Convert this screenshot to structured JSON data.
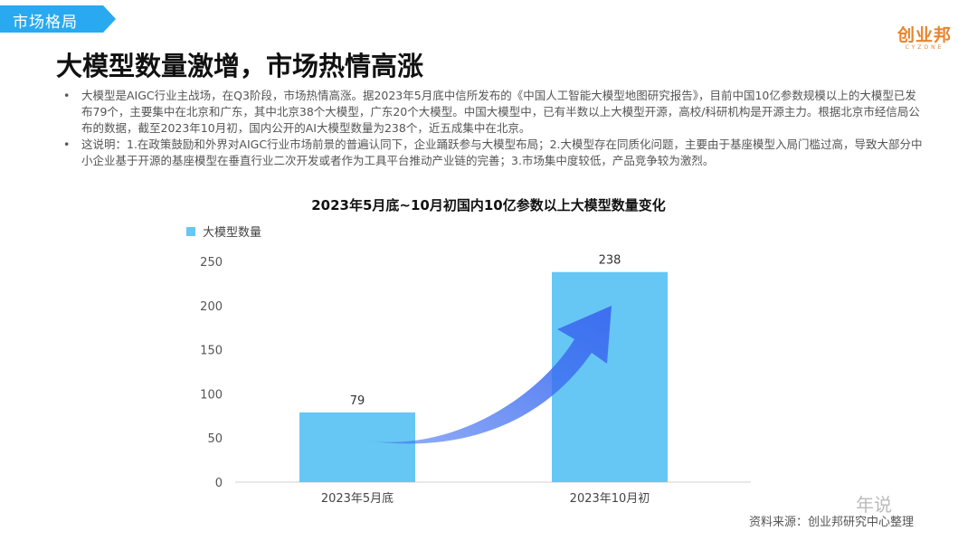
{
  "section_tag": "市场格局",
  "logo": {
    "main": "创业邦",
    "sub": "CYZONE"
  },
  "title": "大模型数量激增，市场热情高涨",
  "bullets": [
    "大模型是AIGC行业主战场，在Q3阶段，市场热情高涨。据2023年5月底中信所发布的《中国人工智能大模型地图研究报告》，目前中国10亿参数规模以上的大模型已发布79个，主要集中在北京和广东，其中北京38个大模型，广东20个大模型。中国大模型中，已有半数以上大模型开源，高校/科研机构是开源主力。根据北京市经信局公布的数据，截至2023年10月初，国内公开的AI大模型数量为238个，近五成集中在北京。",
    "这说明：1.在政策鼓励和外界对AIGC行业市场前景的普遍认同下，企业踊跃参与大模型布局；2.大模型存在同质化问题，主要由于基座模型入局门槛过高，导致大部分中小企业基于开源的基座模型在垂直行业二次开发或者作为工具平台推动产业链的完善；3.市场集中度较低，产品竞争较为激烈。"
  ],
  "bullet_marker": "•",
  "colors": {
    "tag": "#29a9f0",
    "bar": "#66c7f5",
    "arrow": "#3d6ef0",
    "logo": "#e8842c"
  },
  "chart_data": {
    "type": "bar",
    "title": "2023年5月底~10月初国内10亿参数以上大模型数量变化",
    "categories": [
      "2023年5月底",
      "2023年10月初"
    ],
    "series": [
      {
        "name": "大模型数量",
        "values": [
          79,
          238
        ]
      }
    ],
    "ylim": [
      0,
      250
    ],
    "yticks": [
      0,
      50,
      100,
      150,
      200,
      250
    ],
    "grid": false,
    "legend": "top-left",
    "annotation": "arrow-up-trend"
  },
  "source": "资料来源：创业邦研究中心整理",
  "watermark": "年说"
}
